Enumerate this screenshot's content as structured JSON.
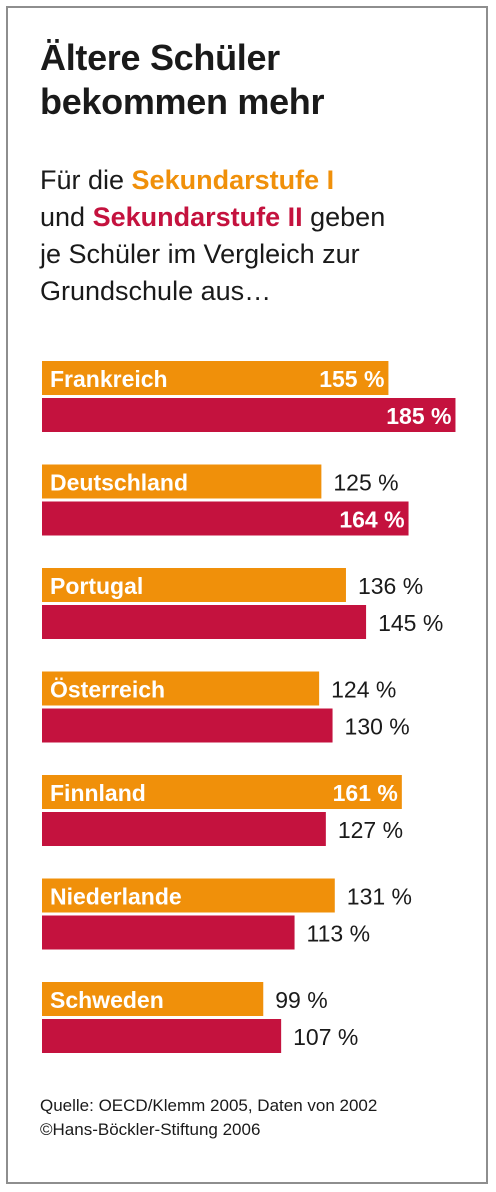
{
  "title_lines": [
    "Ältere Schüler",
    "bekommen mehr"
  ],
  "subtitle": {
    "part1": "Für die ",
    "sek1": "Sekundarstufe I",
    "part2": "und ",
    "sek2": "Sekundarstufe II",
    "part3": " geben",
    "part4": "je Schüler im Vergleich zur",
    "part5": "Grundschule aus…"
  },
  "colors": {
    "sek1": "#f0900a",
    "sek2": "#c4123e",
    "text": "#1a1a1a",
    "inside_text": "#ffffff"
  },
  "chart_data": {
    "type": "bar",
    "orientation": "horizontal",
    "categories": [
      "Frankreich",
      "Deutschland",
      "Portugal",
      "Österreich",
      "Finnland",
      "Niederlande",
      "Schweden"
    ],
    "series": [
      {
        "name": "Sekundarstufe I",
        "values": [
          155,
          125,
          136,
          124,
          161,
          131,
          99
        ]
      },
      {
        "name": "Sekundarstufe II",
        "values": [
          185,
          164,
          145,
          130,
          127,
          113,
          107
        ]
      }
    ],
    "value_labels": [
      [
        "155 %",
        "125 %",
        "136 %",
        "124 %",
        "161 %",
        "131 %",
        "99 %"
      ],
      [
        "185 %",
        "164 %",
        "145 %",
        "130 %",
        "127 %",
        "113 %",
        "107 %"
      ]
    ],
    "unit": "%",
    "grid": false,
    "legend": "none"
  },
  "source_lines": [
    "Quelle: OECD/Klemm 2005, Daten von 2002",
    "©Hans-Böckler-Stiftung 2006"
  ]
}
